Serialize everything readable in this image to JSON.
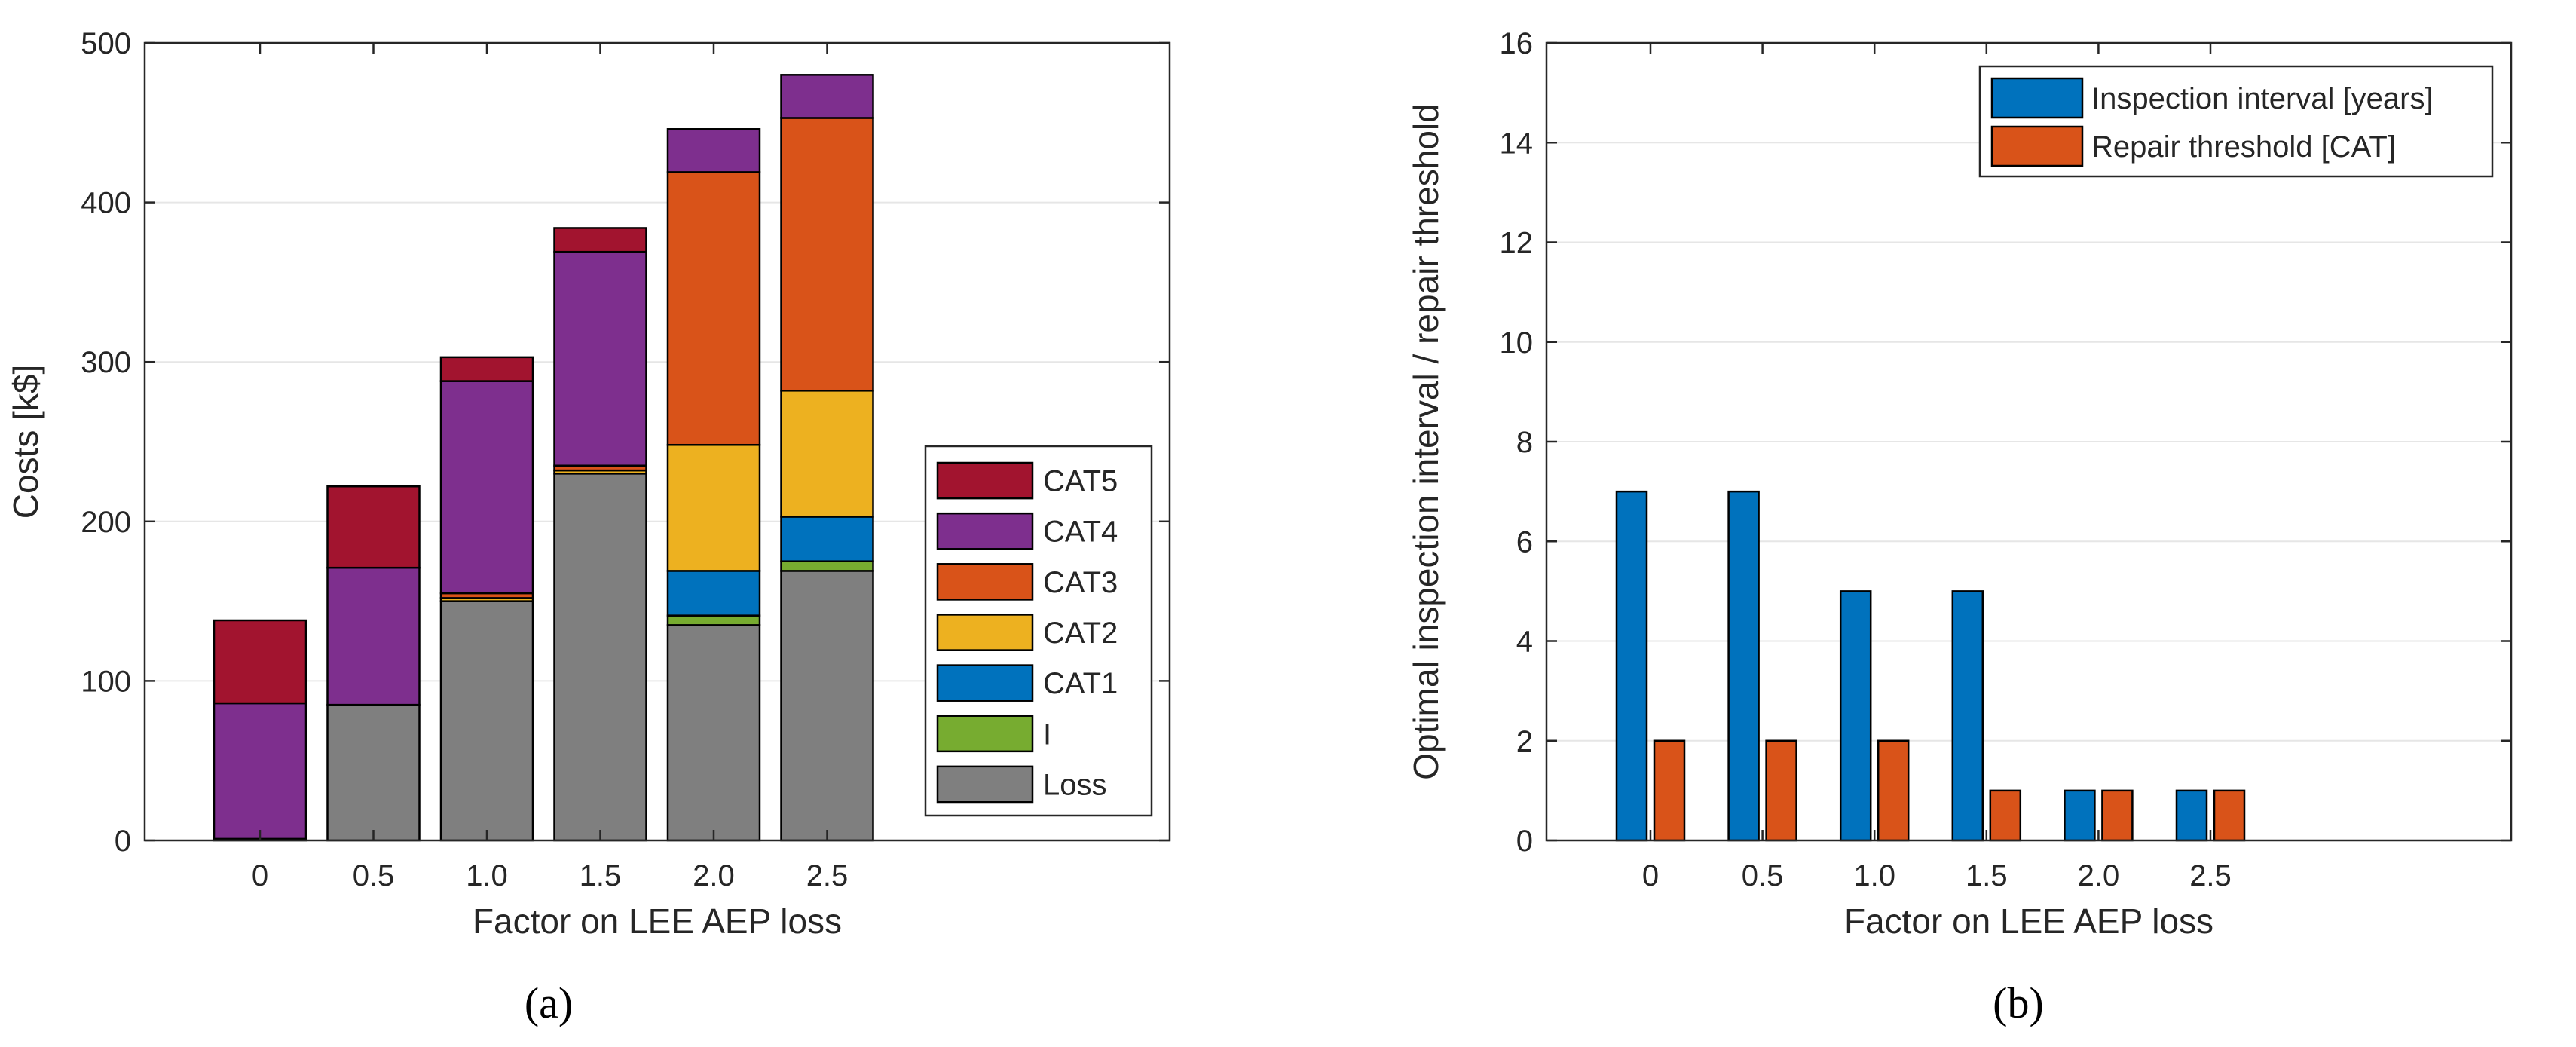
{
  "chart_data": [
    {
      "type": "bar",
      "stacked": true,
      "caption": "(a)",
      "xlabel": "Factor on LEE AEP loss",
      "ylabel": "Costs [k$]",
      "categories": [
        "0",
        "0.5",
        "1.0",
        "1.5",
        "2.0",
        "2.5"
      ],
      "ylim": [
        0,
        500
      ],
      "yticks": [
        "0",
        "100",
        "200",
        "300",
        "400",
        "500"
      ],
      "grid": true,
      "legend_position": "inside-lower-right",
      "series": [
        {
          "name": "Loss",
          "color": "#7f7f7f",
          "values": [
            1,
            85,
            150,
            230,
            135,
            169
          ]
        },
        {
          "name": "I",
          "color": "#77ac30",
          "values": [
            0,
            0,
            0,
            0,
            6,
            6
          ]
        },
        {
          "name": "CAT1",
          "color": "#0072bd",
          "values": [
            0,
            0,
            0,
            0,
            28,
            28
          ]
        },
        {
          "name": "CAT2",
          "color": "#edb120",
          "values": [
            0,
            0,
            2,
            2,
            79,
            79
          ]
        },
        {
          "name": "CAT3",
          "color": "#d95319",
          "values": [
            0,
            0,
            3,
            3,
            171,
            171
          ]
        },
        {
          "name": "CAT4",
          "color": "#7e2f8e",
          "values": [
            85,
            86,
            133,
            134,
            27,
            27
          ]
        },
        {
          "name": "CAT5",
          "color": "#a2142f",
          "values": [
            52,
            51,
            15,
            15,
            0,
            0
          ]
        }
      ]
    },
    {
      "type": "bar",
      "caption": "(b)",
      "xlabel": "Factor on LEE AEP loss",
      "ylabel": "Optimal inspection interval / repair threshold",
      "categories": [
        "0",
        "0.5",
        "1.0",
        "1.5",
        "2.0",
        "2.5"
      ],
      "ylim": [
        0,
        16
      ],
      "yticks": [
        "0",
        "2",
        "4",
        "6",
        "8",
        "10",
        "12",
        "14",
        "16"
      ],
      "grid": true,
      "legend_position": "inside-top-right",
      "series": [
        {
          "name": "Inspection interval [years]",
          "color": "#0072bd",
          "values": [
            7,
            7,
            5,
            5,
            1,
            1
          ]
        },
        {
          "name": "Repair threshold [CAT]",
          "color": "#d95319",
          "values": [
            2,
            2,
            2,
            1,
            1,
            1
          ]
        }
      ]
    }
  ]
}
